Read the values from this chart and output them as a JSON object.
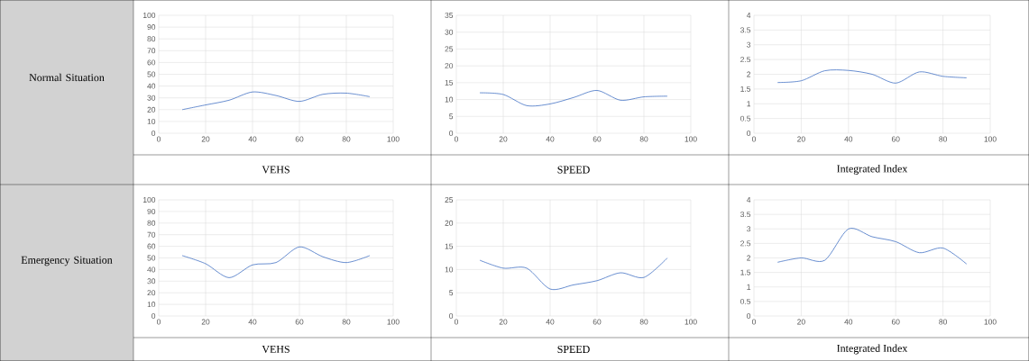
{
  "chart_data": [
    {
      "type": "other",
      "title": "Normal Situation"
    },
    {
      "type": "line",
      "xlabel": "VEHS",
      "x": [
        10,
        20,
        30,
        40,
        50,
        60,
        70,
        80,
        90
      ],
      "values": [
        20,
        24,
        28,
        35,
        32,
        27,
        33,
        34,
        31
      ],
      "color": "#4472c4",
      "xlim": [
        0,
        100
      ],
      "xticks": [
        0,
        20,
        40,
        60,
        80,
        100
      ],
      "ylim": [
        0,
        100
      ],
      "yticks": [
        0,
        10,
        20,
        30,
        40,
        50,
        60,
        70,
        80,
        90,
        100
      ],
      "grid": true
    },
    {
      "type": "line",
      "xlabel": "SPEED",
      "x": [
        10,
        20,
        30,
        40,
        50,
        60,
        70,
        80,
        90
      ],
      "values": [
        12,
        11.5,
        8.2,
        8.7,
        10.6,
        12.7,
        9.8,
        10.8,
        11
      ],
      "color": "#4472c4",
      "xlim": [
        0,
        100
      ],
      "xticks": [
        0,
        20,
        40,
        60,
        80,
        100
      ],
      "ylim": [
        0,
        35
      ],
      "yticks": [
        0,
        5,
        10,
        15,
        20,
        25,
        30,
        35
      ],
      "grid": true
    },
    {
      "type": "line",
      "xlabel": "Integrated  Index",
      "x": [
        10,
        20,
        30,
        40,
        50,
        60,
        70,
        80,
        90
      ],
      "values": [
        1.72,
        1.78,
        2.12,
        2.13,
        2.0,
        1.7,
        2.08,
        1.93,
        1.88
      ],
      "color": "#4472c4",
      "xlim": [
        0,
        100
      ],
      "xticks": [
        0,
        20,
        40,
        60,
        80,
        100
      ],
      "ylim": [
        0,
        4
      ],
      "yticks": [
        0,
        0.5,
        1,
        1.5,
        2,
        2.5,
        3,
        3.5,
        4
      ],
      "grid": true
    },
    {
      "type": "other",
      "title": "Emergency Situation"
    },
    {
      "type": "line",
      "xlabel": "VEHS",
      "x": [
        10,
        20,
        30,
        40,
        50,
        60,
        70,
        80,
        90
      ],
      "values": [
        52,
        45,
        33,
        44,
        46,
        59.5,
        51,
        46,
        52
      ],
      "color": "#4472c4",
      "xlim": [
        0,
        100
      ],
      "xticks": [
        0,
        20,
        40,
        60,
        80,
        100
      ],
      "ylim": [
        0,
        100
      ],
      "yticks": [
        0,
        10,
        20,
        30,
        40,
        50,
        60,
        70,
        80,
        90,
        100
      ],
      "grid": true
    },
    {
      "type": "line",
      "xlabel": "SPEED",
      "x": [
        10,
        20,
        30,
        40,
        50,
        60,
        70,
        80,
        90
      ],
      "values": [
        12,
        10.3,
        10.3,
        5.8,
        6.7,
        7.6,
        9.3,
        8.3,
        12.5
      ],
      "color": "#4472c4",
      "xlim": [
        0,
        100
      ],
      "xticks": [
        0,
        20,
        40,
        60,
        80,
        100
      ],
      "ylim": [
        0,
        25
      ],
      "yticks": [
        0,
        5,
        10,
        15,
        20,
        25
      ],
      "grid": true
    },
    {
      "type": "line",
      "xlabel": "Integrated  Index",
      "x": [
        10,
        20,
        30,
        40,
        50,
        60,
        70,
        80,
        90
      ],
      "values": [
        1.85,
        2.0,
        1.92,
        3.0,
        2.73,
        2.56,
        2.18,
        2.34,
        1.79
      ],
      "color": "#4472c4",
      "xlim": [
        0,
        100
      ],
      "xticks": [
        0,
        20,
        40,
        60,
        80,
        100
      ],
      "ylim": [
        0,
        4
      ],
      "yticks": [
        0,
        0.5,
        1,
        1.5,
        2,
        2.5,
        3,
        3.5,
        4
      ],
      "grid": true
    }
  ]
}
